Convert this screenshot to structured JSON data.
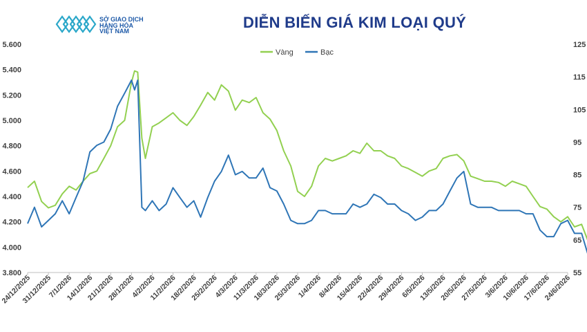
{
  "header": {
    "logo_line1": "SỞ GIAO DỊCH",
    "logo_line2": "HÀNG HÓA",
    "logo_line3": "VIỆT NAM",
    "title": "DIỄN BIẾN GIÁ KIM LOẠI QUÝ"
  },
  "colors": {
    "gold": "#92d050",
    "silver": "#2e75b6",
    "title": "#1f3b8a",
    "logo": "#1e5aa8"
  },
  "chart_data": {
    "type": "line",
    "title": "DIỄN BIẾN GIÁ KIM LOẠI QUÝ",
    "xlabel": "",
    "ylabel": "",
    "x_ticks": [
      "24/12/2025",
      "31/12/2025",
      "7/1/2026",
      "14/1/2026",
      "21/1/2026",
      "28/1/2026",
      "4/2/2026",
      "11/2/2026",
      "18/2/2026",
      "25/2/2026",
      "4/3/2026",
      "11/3/2026",
      "18/3/2026",
      "25/3/2026",
      "1/4/2026",
      "8/4/2026",
      "15/4/2026",
      "22/4/2026",
      "29/4/2026",
      "6/5/2026",
      "13/5/2026",
      "20/5/2026",
      "27/5/2026",
      "3/6/2026",
      "10/6/2026",
      "17/6/2026",
      "24/6/2026"
    ],
    "y_left": {
      "min": 3800,
      "max": 5600,
      "step": 200,
      "tick_labels": [
        "3.800",
        "4.000",
        "4.200",
        "4.400",
        "4.600",
        "4.800",
        "5.000",
        "5.200",
        "5.400",
        "5.600"
      ]
    },
    "y_right": {
      "min": 55,
      "max": 125,
      "step": 10,
      "tick_labels": [
        "55",
        "65",
        "75",
        "85",
        "95",
        "105",
        "115",
        "125"
      ]
    },
    "grid": false,
    "legend_position": "top",
    "series": [
      {
        "name": "Vàng",
        "axis": "left",
        "x": [
          0,
          0.33,
          0.67,
          1,
          1.33,
          1.67,
          2,
          2.33,
          2.67,
          3,
          3.33,
          3.67,
          4,
          4.33,
          4.67,
          5,
          5.15,
          5.3,
          5.5,
          5.67,
          6,
          6.33,
          6.67,
          7,
          7.33,
          7.67,
          8,
          8.33,
          8.67,
          9,
          9.33,
          9.67,
          10,
          10.33,
          10.67,
          11,
          11.33,
          11.67,
          12,
          12.33,
          12.67,
          13,
          13.33,
          13.67,
          14,
          14.33,
          14.67,
          15,
          15.33,
          15.67,
          16,
          16.33,
          16.67,
          17,
          17.33,
          17.67,
          18,
          18.33,
          18.67,
          19,
          19.33,
          19.67,
          20,
          20.33,
          20.67,
          21,
          21.33,
          21.67,
          22,
          22.33,
          22.67,
          23,
          23.33,
          23.67,
          24,
          24.33,
          24.67,
          25,
          25.33,
          25.67,
          26,
          26.33,
          26.67,
          27
        ],
        "values": [
          4470,
          4520,
          4360,
          4310,
          4330,
          4420,
          4480,
          4450,
          4520,
          4580,
          4600,
          4700,
          4800,
          4950,
          5000,
          5300,
          5390,
          5380,
          4860,
          4700,
          4950,
          4980,
          5020,
          5060,
          5000,
          4960,
          5030,
          5120,
          5220,
          5160,
          5280,
          5230,
          5080,
          5160,
          5140,
          5180,
          5060,
          5010,
          4920,
          4760,
          4640,
          4440,
          4400,
          4480,
          4640,
          4700,
          4680,
          4700,
          4720,
          4760,
          4740,
          4820,
          4760,
          4760,
          4720,
          4700,
          4640,
          4620,
          4590,
          4560,
          4600,
          4620,
          4700,
          4720,
          4730,
          4680,
          4560,
          4540,
          4520,
          4520,
          4510,
          4480,
          4520,
          4500,
          4480,
          4400,
          4320,
          4300,
          4240,
          4200,
          4240,
          4160,
          4180,
          4040
        ]
      },
      {
        "name": "Bạc",
        "axis": "right",
        "x": [
          0,
          0.33,
          0.67,
          1,
          1.33,
          1.67,
          2,
          2.33,
          2.67,
          3,
          3.33,
          3.67,
          4,
          4.33,
          4.67,
          5,
          5.15,
          5.3,
          5.5,
          5.67,
          6,
          6.33,
          6.67,
          7,
          7.33,
          7.67,
          8,
          8.33,
          8.67,
          9,
          9.33,
          9.67,
          10,
          10.33,
          10.67,
          11,
          11.33,
          11.67,
          12,
          12.33,
          12.67,
          13,
          13.33,
          13.67,
          14,
          14.33,
          14.67,
          15,
          15.33,
          15.67,
          16,
          16.33,
          16.67,
          17,
          17.33,
          17.67,
          18,
          18.33,
          18.67,
          19,
          19.33,
          19.67,
          20,
          20.33,
          20.67,
          21,
          21.33,
          21.67,
          22,
          22.33,
          22.67,
          23,
          23.33,
          23.67,
          24,
          24.33,
          24.67,
          25,
          25.33,
          25.67,
          26,
          26.33,
          26.67,
          27
        ],
        "values": [
          70,
          75,
          69,
          71,
          73,
          77,
          73,
          78,
          83,
          92,
          94,
          95,
          99,
          106,
          110,
          114,
          111,
          114,
          75,
          74,
          77,
          74,
          76,
          81,
          78,
          75,
          77,
          72,
          78,
          83,
          86,
          91,
          85,
          86,
          84,
          84,
          87,
          81,
          80,
          76,
          71,
          70,
          70,
          71,
          74,
          74,
          73,
          73,
          73,
          76,
          75,
          76,
          79,
          78,
          76,
          76,
          74,
          73,
          71,
          72,
          74,
          74,
          76,
          80,
          84,
          86,
          76,
          75,
          75,
          75,
          74,
          74,
          74,
          74,
          73,
          73,
          68,
          66,
          66,
          70,
          71,
          67,
          67,
          60
        ]
      }
    ]
  }
}
